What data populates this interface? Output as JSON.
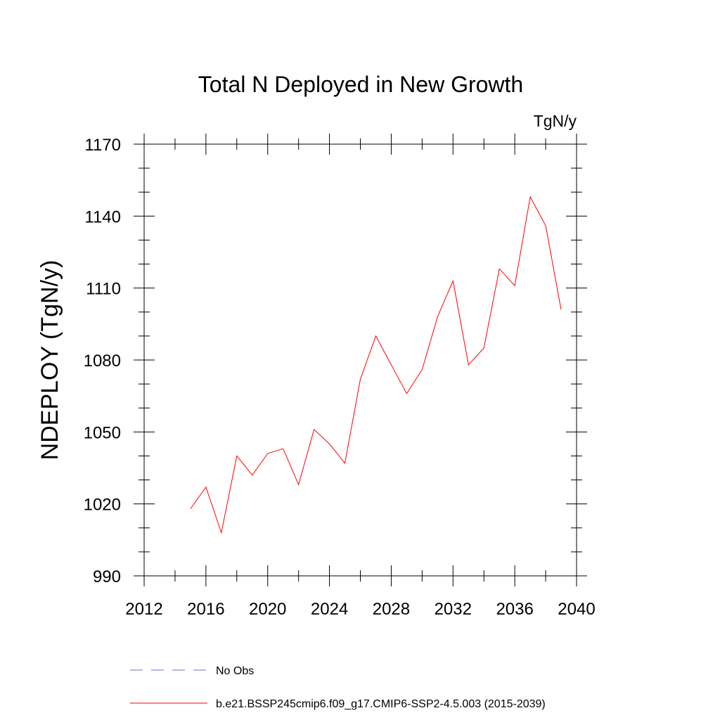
{
  "chart_data": {
    "type": "line",
    "title": "Total N Deployed in New Growth",
    "units": "TgN/y",
    "ylabel": "NDEPLOY  (TgN/y)",
    "xlim": [
      2012,
      2040
    ],
    "ylim": [
      990,
      1170
    ],
    "xticks": [
      2012,
      2016,
      2020,
      2024,
      2028,
      2032,
      2036,
      2040
    ],
    "yticks": [
      990,
      1020,
      1050,
      1080,
      1110,
      1140,
      1170
    ],
    "grid": false,
    "legend_position": "bottom",
    "series": [
      {
        "name": "b.e21.BSSP245cmip6.f09_g17.CMIP6-SSP2-4.5.003 (2015-2039)",
        "color": "#ff0000",
        "style": "solid",
        "x": [
          2015,
          2016,
          2017,
          2018,
          2019,
          2020,
          2021,
          2022,
          2023,
          2024,
          2025,
          2026,
          2027,
          2028,
          2029,
          2030,
          2031,
          2032,
          2033,
          2034,
          2035,
          2036,
          2037,
          2038,
          2039
        ],
        "y": [
          1018,
          1027,
          1008,
          1040,
          1032,
          1041,
          1043,
          1028,
          1051,
          1045,
          1037,
          1072,
          1090,
          1078,
          1066,
          1076,
          1098,
          1113,
          1078,
          1085,
          1118,
          1111,
          1148,
          1136,
          1101
        ]
      }
    ],
    "legend": [
      {
        "name": "No Obs",
        "color": "#6f6fbf",
        "style": "dashed"
      },
      {
        "name": "b.e21.BSSP245cmip6.f09_g17.CMIP6-SSP2-4.5.003 (2015-2039)",
        "color": "#ff0000",
        "style": "solid"
      }
    ]
  }
}
